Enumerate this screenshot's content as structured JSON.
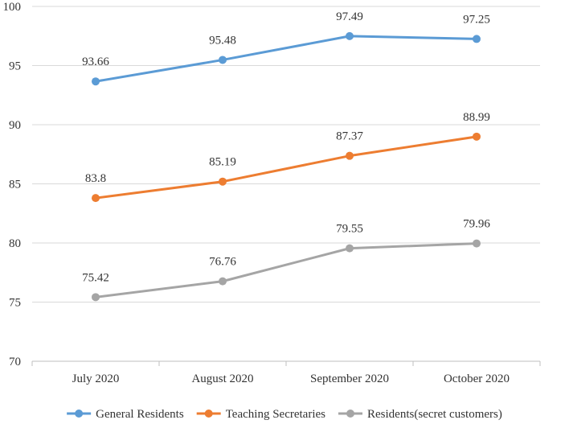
{
  "chart_data": {
    "type": "line",
    "title": "",
    "xlabel": "",
    "ylabel": "",
    "categories": [
      "July 2020",
      "August 2020",
      "September 2020",
      "October 2020"
    ],
    "ylim": [
      70,
      100
    ],
    "yticks": [
      70,
      75,
      80,
      85,
      90,
      95,
      100
    ],
    "grid": "horizontal",
    "legend_position": "bottom",
    "series": [
      {
        "name": "General Residents",
        "color": "#5b9bd5",
        "values": [
          93.66,
          95.48,
          97.49,
          97.25
        ],
        "labels": [
          "93.66",
          "95.48",
          "97.49",
          "97.25"
        ]
      },
      {
        "name": "Teaching Secretaries",
        "color": "#ed7d31",
        "values": [
          83.8,
          85.19,
          87.37,
          88.99
        ],
        "labels": [
          "83.8",
          "85.19",
          "87.37",
          "88.99"
        ]
      },
      {
        "name": "Residents(secret customers)",
        "color": "#a5a5a5",
        "values": [
          75.42,
          76.76,
          79.55,
          79.96
        ],
        "labels": [
          "75.42",
          "76.76",
          "79.55",
          "79.96"
        ]
      }
    ]
  }
}
